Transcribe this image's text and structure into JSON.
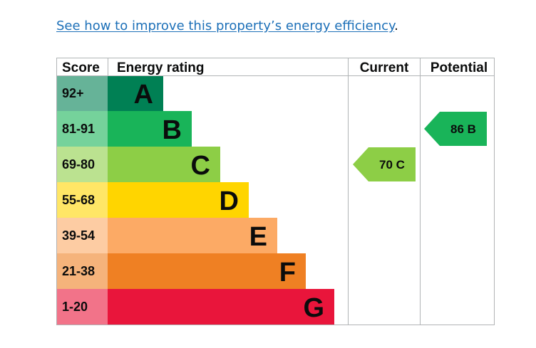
{
  "intro": {
    "link_text": "See how to improve this property’s energy efficiency",
    "trailing": "."
  },
  "chart_data": {
    "type": "table",
    "headers": {
      "score": "Score",
      "rating": "Energy rating",
      "current": "Current",
      "potential": "Potential"
    },
    "bands": [
      {
        "score": "92+",
        "letter": "A",
        "color": "#008054",
        "score_bg": "#66b398"
      },
      {
        "score": "81-91",
        "letter": "B",
        "color": "#19b459",
        "score_bg": "#75d29b"
      },
      {
        "score": "69-80",
        "letter": "C",
        "color": "#8dce46",
        "score_bg": "#bbe290"
      },
      {
        "score": "55-68",
        "letter": "D",
        "color": "#ffd500",
        "score_bg": "#ffe666"
      },
      {
        "score": "39-54",
        "letter": "E",
        "color": "#fcaa65",
        "score_bg": "#fdcca3"
      },
      {
        "score": "21-38",
        "letter": "F",
        "color": "#ef8023",
        "score_bg": "#f5b37b"
      },
      {
        "score": "1-20",
        "letter": "G",
        "color": "#e9153b",
        "score_bg": "#f27389"
      }
    ],
    "current": {
      "value": 70,
      "band": "C",
      "label": "70  C"
    },
    "potential": {
      "value": 86,
      "band": "B",
      "label": "86  B"
    }
  }
}
